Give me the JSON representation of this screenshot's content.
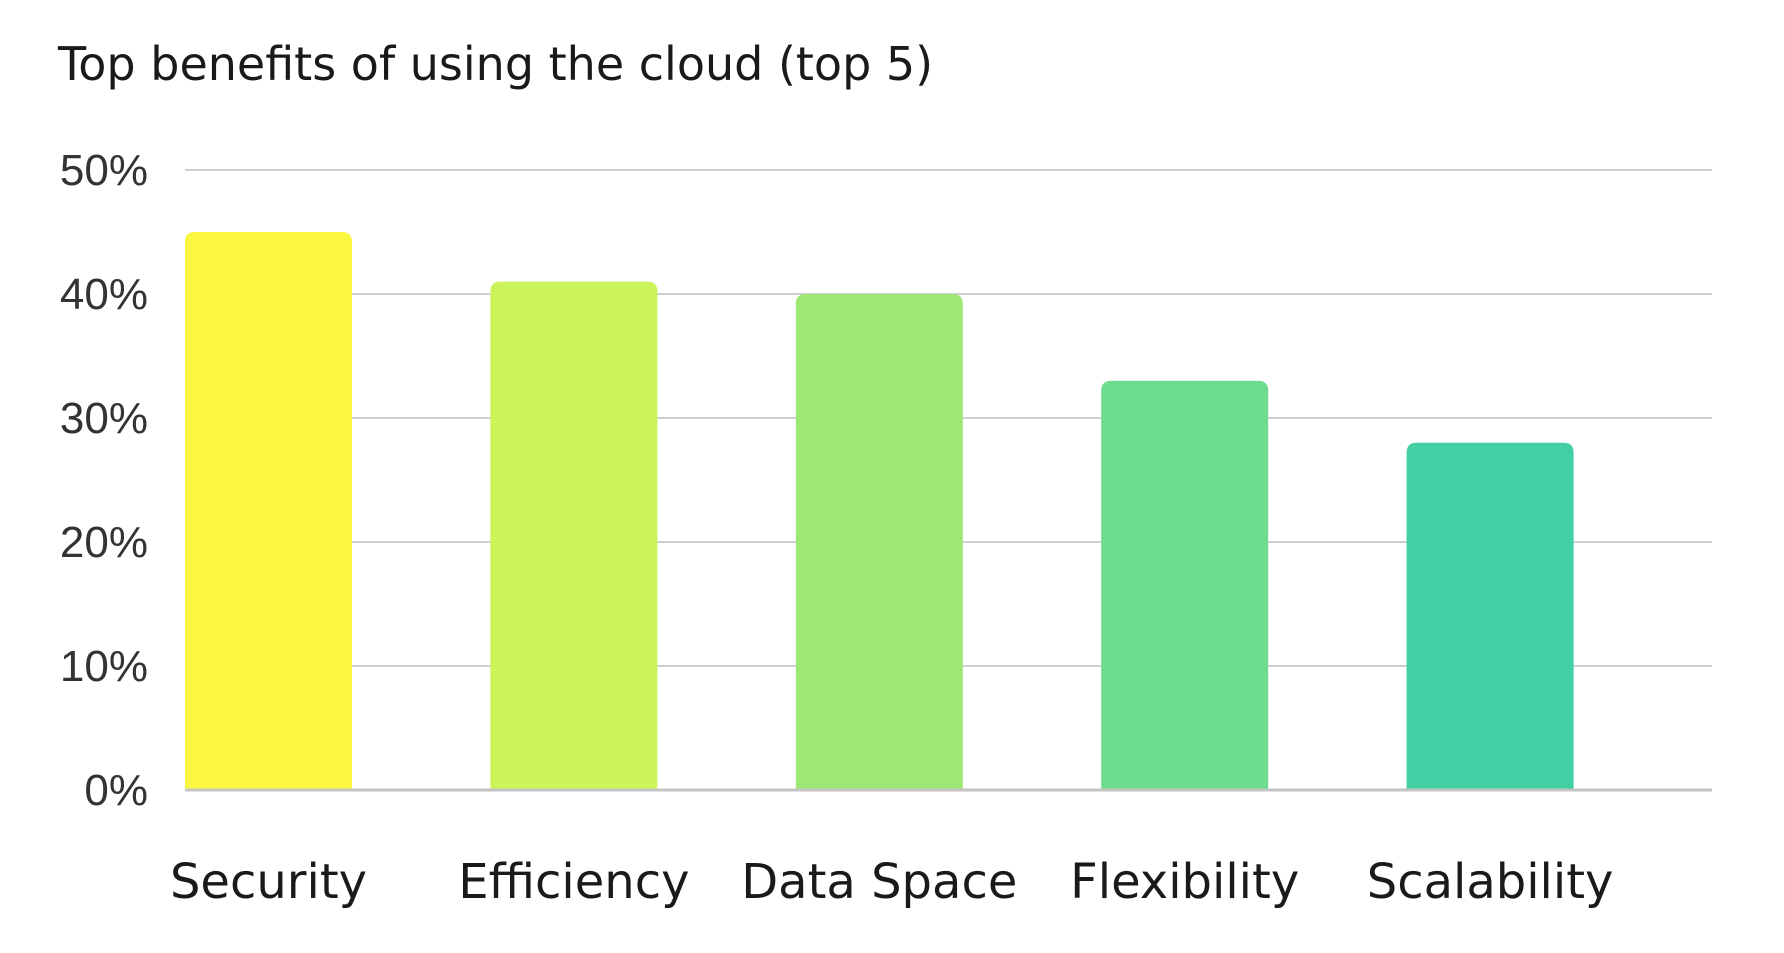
{
  "chart_data": {
    "type": "bar",
    "title": "Top benefits of using the cloud (top 5)",
    "xlabel": "",
    "ylabel": "",
    "categories": [
      "Security",
      "Efficiency",
      "Data Space",
      "Flexibility",
      "Scalability"
    ],
    "values": [
      45,
      41,
      40,
      33,
      28
    ],
    "ylim": [
      0,
      50
    ],
    "yticks": [
      0,
      10,
      20,
      30,
      40,
      50
    ],
    "ytick_labels": [
      "0%",
      "10%",
      "20%",
      "30%",
      "40%",
      "50%"
    ],
    "grid": true,
    "legend": "none",
    "bar_colors": [
      "#fbf63f",
      "#cbf35a",
      "#9de874",
      "#6ddc8d",
      "#41cfa3"
    ],
    "gridline_color": "#cfcfcf"
  }
}
